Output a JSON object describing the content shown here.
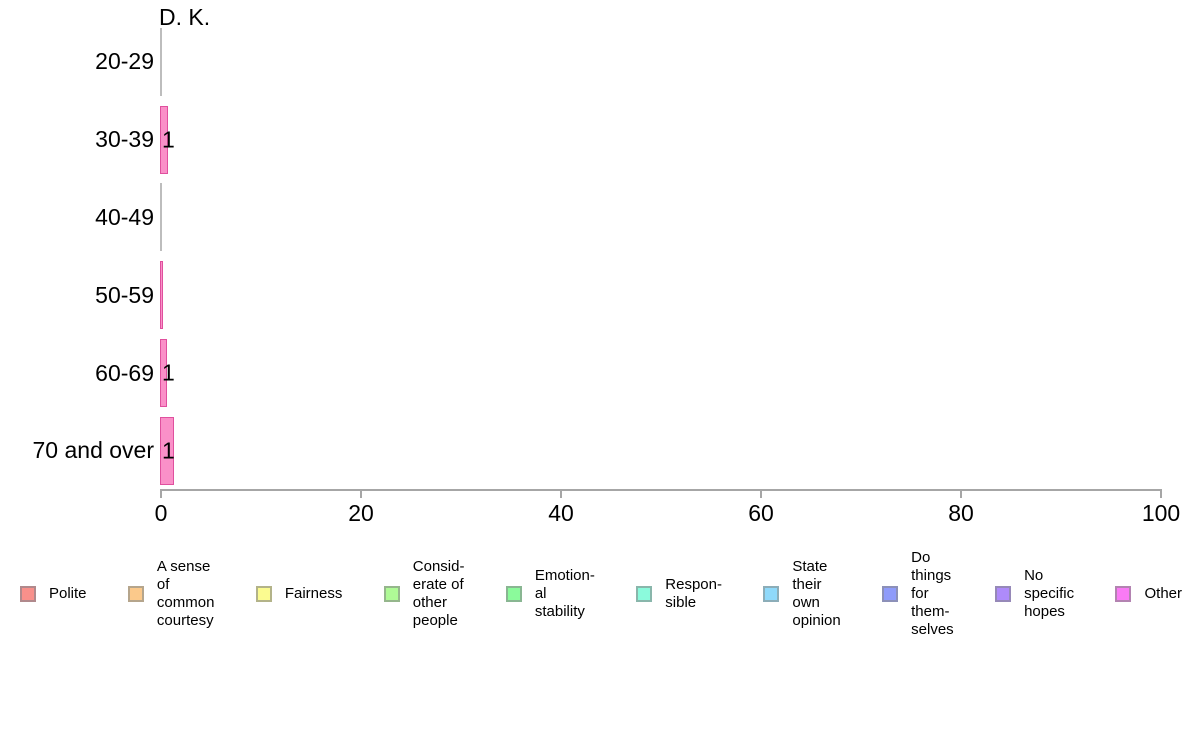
{
  "chart_data": {
    "type": "bar",
    "orientation": "horizontal",
    "title": "D. K.",
    "categories": [
      "20-29",
      "30-39",
      "40-49",
      "50-59",
      "60-69",
      "70 and over"
    ],
    "values": [
      0,
      0.8,
      0,
      0.3,
      0.7,
      1.4
    ],
    "bar_labels": [
      "",
      "1",
      "",
      "",
      "1",
      "1"
    ],
    "xlabel": "",
    "ylabel": "",
    "xlim": [
      0,
      100
    ],
    "x_ticks": [
      "0",
      "20",
      "40",
      "60",
      "80",
      "100"
    ],
    "grid": false,
    "bar_color": "#fa90c8",
    "bar_border_color": "#e0509e",
    "zero_bar_line_color": "#bdbdbd",
    "axis_color": "#a6a6a6",
    "legend_position": "bottom",
    "legend": [
      {
        "label": "Polite",
        "color": "#f8908b",
        "border": "#b0898c"
      },
      {
        "label": "A sense\nof\ncommon\ncourtesy",
        "color": "#fbc98b",
        "border": "#b5a58c"
      },
      {
        "label": "Fairness",
        "color": "#fbfb90",
        "border": "#b3b389"
      },
      {
        "label": "Consid-\nerate of\nother\npeople",
        "color": "#affa96",
        "border": "#95b68c"
      },
      {
        "label": "Emotion-\nal\nstability",
        "color": "#8bfa9b",
        "border": "#89b692"
      },
      {
        "label": "Respon-\nsible",
        "color": "#8bfadc",
        "border": "#89b6ab"
      },
      {
        "label": "State\ntheir\nown\nopinion",
        "color": "#8fd9fa",
        "border": "#8cadb8"
      },
      {
        "label": "Do\nthings\nfor\nthem-\nselves",
        "color": "#8f9bfa",
        "border": "#8c90b8"
      },
      {
        "label": "No\nspecific\nhopes",
        "color": "#ae8bfa",
        "border": "#9689b8"
      },
      {
        "label": "Other",
        "color": "#fa7bf5",
        "border": "#b383b1"
      }
    ]
  }
}
